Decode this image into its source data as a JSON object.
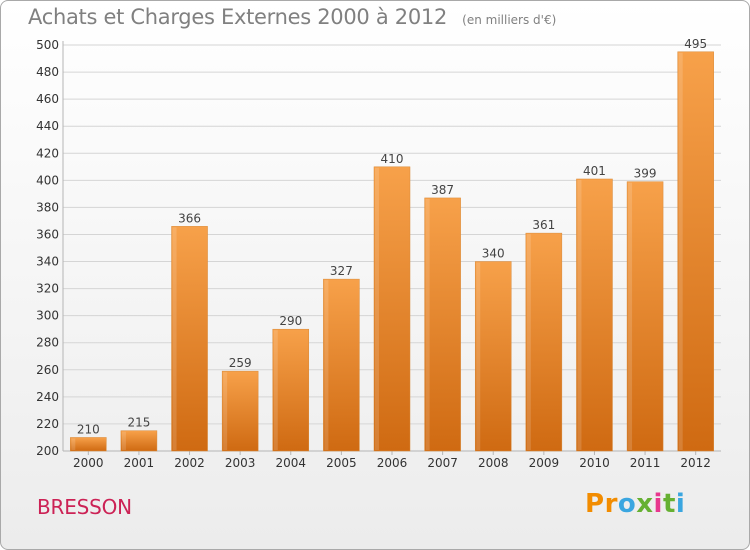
{
  "title": "Achats et Charges Externes 2000 à 2012",
  "subtitle": "(en milliers d'€)",
  "commune": "BRESSON",
  "logo": {
    "text": "Proxiti",
    "letter_colors": [
      "#f28c00",
      "#f28c00",
      "#3aa6e0",
      "#66b032",
      "#e8378e",
      "#66b032",
      "#3aa6e0"
    ]
  },
  "colors": {
    "bar_light": "#f7a14a",
    "bar_dark": "#cf6a12",
    "grid": "#d5d5d5"
  },
  "chart_data": {
    "type": "bar",
    "title": "Achats et Charges Externes 2000 à 2012",
    "xlabel": "",
    "ylabel": "",
    "categories": [
      "2000",
      "2001",
      "2002",
      "2003",
      "2004",
      "2005",
      "2006",
      "2007",
      "2008",
      "2009",
      "2010",
      "2011",
      "2012"
    ],
    "values": [
      210,
      215,
      366,
      259,
      290,
      327,
      410,
      387,
      340,
      361,
      401,
      399,
      495
    ],
    "ylim": [
      200,
      500
    ],
    "yticks": [
      200,
      220,
      240,
      260,
      280,
      300,
      320,
      340,
      360,
      380,
      400,
      420,
      440,
      460,
      480,
      500
    ],
    "grid": true,
    "data_labels": true
  }
}
